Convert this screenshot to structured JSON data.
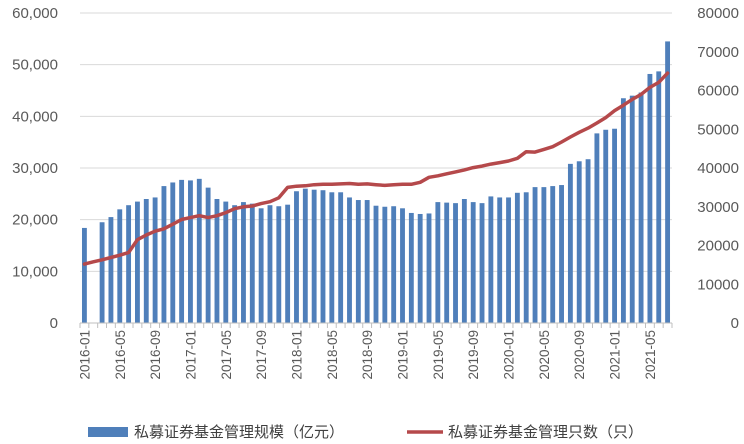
{
  "chart_data": {
    "type": "bar",
    "title": "",
    "xlabel": "",
    "ylabel": "",
    "y2label": "",
    "legend_position": "bottom",
    "grid": true,
    "ylim": [
      0,
      60000
    ],
    "y_ticks": [
      "0",
      "10,000",
      "20,000",
      "30,000",
      "40,000",
      "50,000",
      "60,000"
    ],
    "y2lim": [
      0,
      80000
    ],
    "y2_ticks": [
      "0",
      "10000",
      "20000",
      "30000",
      "40000",
      "50000",
      "60000",
      "70000",
      "80000"
    ],
    "x_tick_labels": [
      "2016-01",
      "2016-05",
      "2016-09",
      "2017-01",
      "2017-05",
      "2017-09",
      "2018-01",
      "2018-05",
      "2018-09",
      "2019-01",
      "2019-05",
      "2019-09",
      "2020-01",
      "2020-05",
      "2020-09",
      "2021-01",
      "2021-05"
    ],
    "categories": [
      "2016-01",
      "2016-02",
      "2016-03",
      "2016-04",
      "2016-05",
      "2016-06",
      "2016-07",
      "2016-08",
      "2016-09",
      "2016-10",
      "2016-11",
      "2016-12",
      "2017-01",
      "2017-02",
      "2017-03",
      "2017-04",
      "2017-05",
      "2017-06",
      "2017-07",
      "2017-08",
      "2017-09",
      "2017-10",
      "2017-11",
      "2017-12",
      "2018-01",
      "2018-02",
      "2018-03",
      "2018-04",
      "2018-05",
      "2018-06",
      "2018-07",
      "2018-08",
      "2018-09",
      "2018-10",
      "2018-11",
      "2018-12",
      "2019-01",
      "2019-02",
      "2019-03",
      "2019-04",
      "2019-05",
      "2019-06",
      "2019-07",
      "2019-08",
      "2019-09",
      "2019-10",
      "2019-11",
      "2019-12",
      "2020-01",
      "2020-02",
      "2020-03",
      "2020-04",
      "2020-05",
      "2020-06",
      "2020-07",
      "2020-08",
      "2020-09",
      "2020-10",
      "2020-11",
      "2020-12",
      "2021-01",
      "2021-02",
      "2021-03",
      "2021-04",
      "2021-05",
      "2021-06",
      "2021-07"
    ],
    "series": [
      {
        "name": "私募证券基金管理规模（亿元）",
        "type": "bar",
        "axis": "left",
        "color": "#4f7fba",
        "values": [
          18400,
          0,
          19500,
          20500,
          22000,
          22800,
          23500,
          24000,
          24300,
          26500,
          27200,
          27700,
          27600,
          27900,
          26200,
          24000,
          23500,
          22800,
          23400,
          23100,
          22200,
          22800,
          22600,
          22900,
          25500,
          26000,
          25800,
          25700,
          25300,
          25300,
          24300,
          23800,
          23800,
          22700,
          22500,
          22600,
          22200,
          21300,
          21100,
          21200,
          23400,
          23300,
          23200,
          24000,
          23400,
          23200,
          24500,
          24300,
          24300,
          25200,
          25300,
          26300,
          26300,
          26500,
          26700,
          30800,
          31300,
          31700,
          36700,
          37400,
          37600,
          43500,
          44000,
          44600,
          48200,
          48700,
          54500
        ]
      },
      {
        "name": "私募证券基金管理只数（只）",
        "type": "line",
        "axis": "right",
        "color": "#b5494b",
        "values": [
          15200,
          15800,
          16300,
          16900,
          17500,
          18200,
          21500,
          22700,
          23700,
          24300,
          25500,
          26700,
          27200,
          27700,
          27200,
          27700,
          28500,
          29500,
          30000,
          30200,
          30800,
          31300,
          32300,
          35000,
          35300,
          35400,
          35700,
          35800,
          35800,
          35900,
          36000,
          35800,
          35900,
          35700,
          35500,
          35700,
          35800,
          35800,
          36300,
          37600,
          38000,
          38500,
          39000,
          39500,
          40100,
          40500,
          41000,
          41400,
          41800,
          42500,
          44200,
          44100,
          44800,
          45500,
          46700,
          48000,
          49200,
          50300,
          51600,
          53000,
          54800,
          56200,
          57700,
          59000,
          60800,
          62100,
          64500
        ]
      }
    ]
  }
}
